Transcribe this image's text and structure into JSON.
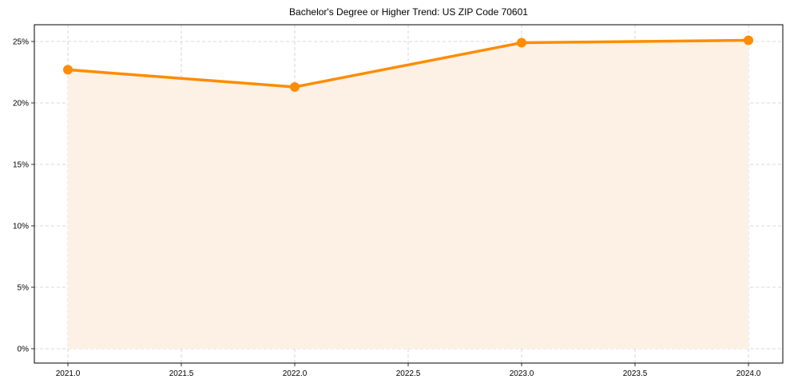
{
  "chart_data": {
    "type": "line",
    "title": "Bachelor's Degree or Higher Trend: US ZIP Code 70601",
    "xlabel": "",
    "ylabel": "",
    "x": [
      2021,
      2022,
      2023,
      2024
    ],
    "series": [
      {
        "name": "Bachelor's Degree or Higher",
        "values": [
          22.7,
          21.3,
          24.9,
          25.1
        ],
        "color": "#ff8c00",
        "fill": true,
        "fill_color": "#fdf1e5"
      }
    ],
    "xticks": [
      "2021.0",
      "2021.5",
      "2022.0",
      "2022.5",
      "2023.0",
      "2023.5",
      "2024.0"
    ],
    "xtick_values": [
      2021.0,
      2021.5,
      2022.0,
      2022.5,
      2023.0,
      2023.5,
      2024.0
    ],
    "yticks": [
      "0%",
      "5%",
      "10%",
      "15%",
      "20%",
      "25%"
    ],
    "ytick_values": [
      0,
      5,
      10,
      15,
      20,
      25
    ],
    "xlim": [
      2020.85,
      2024.15
    ],
    "ylim": [
      -1.2,
      26.3
    ],
    "grid": true,
    "legend": null
  }
}
